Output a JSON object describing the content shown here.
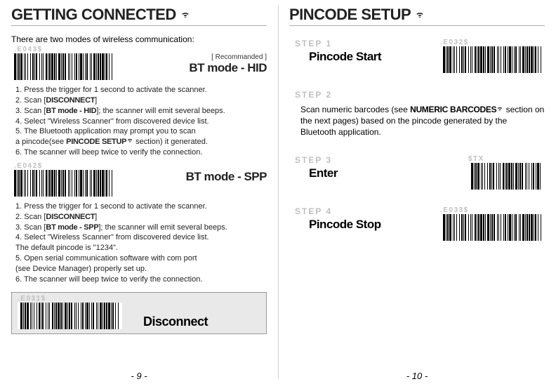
{
  "left": {
    "heading": "GETTING CONNECTED",
    "intro": "There are two modes of wireless communication:",
    "hid": {
      "code": ".E043$",
      "recommended": "[ Recommanded ]",
      "title": "BT mode - HID",
      "steps": [
        "1. Press the trigger for 1 second to activate the scanner.",
        "2. Scan [",
        "3. Scan [",
        "4. Select \"Wireless Scanner\" from discovered device list.",
        "5. The Bluetooth application may prompt you to scan",
        "    a pincode(see ",
        "6. The scanner will beep twice to verify the connection."
      ],
      "kw_disconnect": "DISCONNECT",
      "kw_btmode": "BT mode - HID",
      "kw_pincode": "PINCODE SETUP",
      "step3_tail": "]; the scanner will emit several beeps.",
      "step2_tail": "]",
      "step5b_tail": " section) it generated."
    },
    "spp": {
      "code": ".E042$",
      "title": "BT mode - SPP",
      "step1": "1. Press the trigger for 1 second to activate the scanner.",
      "step2a": "2. Scan [",
      "step3a": "3. Scan [",
      "step3b": "]; the scanner will emit several beeps.",
      "step4a": "4. Select \"Wireless Scanner\" from discovered device list.",
      "step4b": "    The default pincode is \"1234\".",
      "step5a": "5. Open serial communication software with com port",
      "step5b": "    (see Device Manager) properly set up.",
      "step6": "6. The scanner will beep twice to verify the connection.",
      "kw_disconnect": "DISCONNECT",
      "kw_btmode": "BT mode - SPP",
      "step2_tail": "]"
    },
    "disconnect": {
      "code": ".E031$",
      "title": "Disconnect"
    },
    "pagenum": "- 9 -"
  },
  "right": {
    "heading": "PINCODE SETUP",
    "step1": {
      "tag": "STEP 1",
      "title": "Pincode Start",
      "code": ".E032$"
    },
    "step2": {
      "tag": "STEP 2",
      "body_a": "Scan numeric barcodes (see ",
      "kw": "NUMERIC BARCODES",
      "body_b": " section on the next pages) based on the pincode generated by the Bluetooth application."
    },
    "step3": {
      "tag": "STEP 3",
      "title": "Enter",
      "code": "$TX"
    },
    "step4": {
      "tag": "STEP 4",
      "title": "Pincode Stop",
      "code": ".E033$"
    },
    "pagenum": "- 10 -"
  },
  "barcode": {
    "widths": [
      3,
      1,
      1,
      1,
      2,
      1,
      3,
      2,
      1,
      1,
      1,
      2,
      1,
      3,
      1,
      2,
      2,
      1,
      1,
      1,
      2,
      3,
      1,
      2,
      1,
      1,
      1,
      3,
      2,
      1,
      1,
      1,
      2,
      1,
      3,
      1,
      2,
      1,
      1,
      2,
      3,
      1,
      1,
      1,
      2,
      1,
      2,
      3,
      1,
      1,
      1,
      2,
      1,
      3,
      1,
      1,
      2,
      2,
      1,
      1,
      3,
      1,
      1,
      2,
      1,
      1,
      2,
      3,
      1,
      1,
      1,
      2,
      3,
      1,
      1,
      1,
      2,
      1,
      2,
      1,
      3,
      1,
      1,
      1,
      2,
      2,
      1,
      3,
      1,
      1
    ],
    "widths_short": [
      3,
      1,
      1,
      1,
      2,
      1,
      3,
      2,
      1,
      1,
      1,
      2,
      1,
      3,
      1,
      2,
      2,
      1,
      1,
      1,
      2,
      3,
      1,
      2,
      1,
      1,
      1,
      3,
      2,
      1,
      1,
      1,
      2,
      1,
      3,
      1,
      2,
      1,
      1,
      2,
      3,
      1,
      1,
      1,
      2,
      1,
      2,
      3,
      1,
      1,
      1,
      2,
      1,
      3,
      1,
      1,
      2,
      2,
      1,
      1,
      3,
      1,
      1,
      2
    ]
  }
}
